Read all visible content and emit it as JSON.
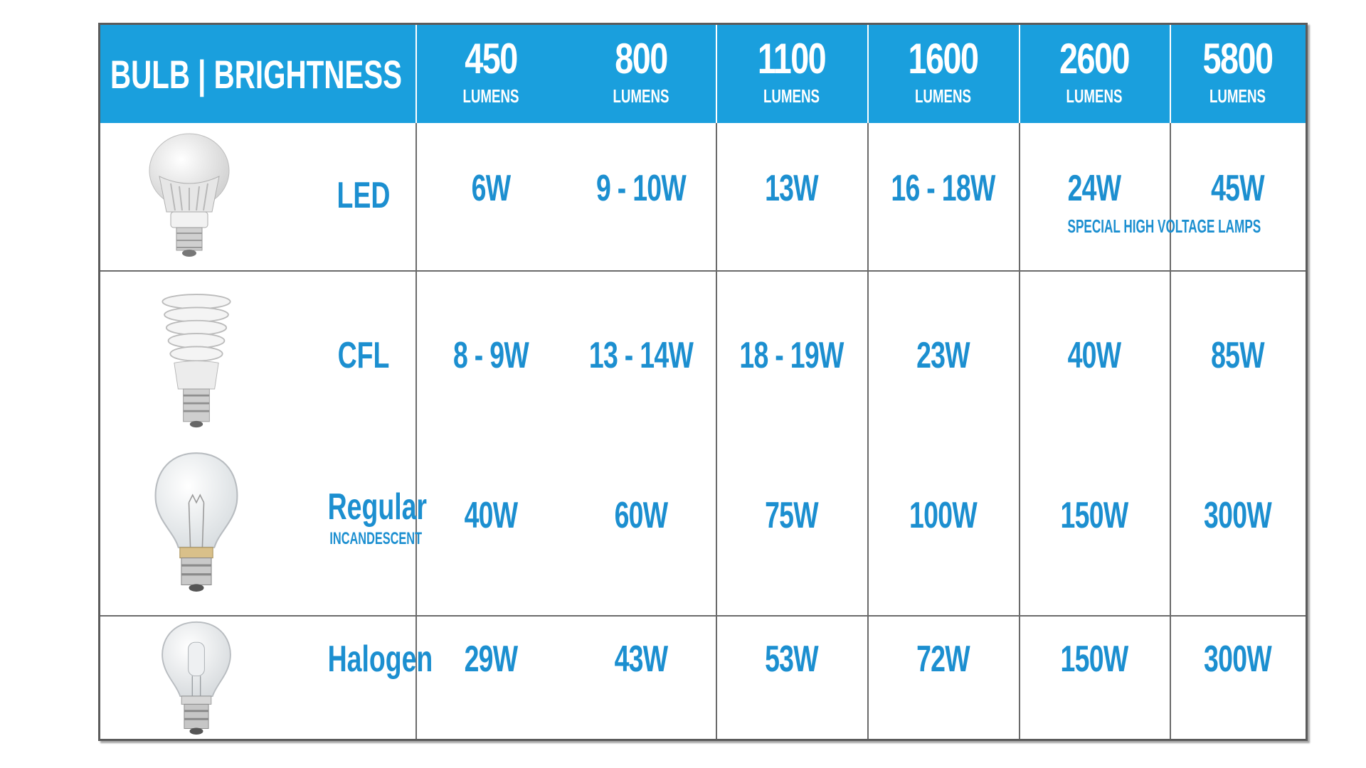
{
  "chart_data": {
    "type": "table",
    "corner_header": "BULB | BRIGHTNESS",
    "columns": [
      {
        "value": "450",
        "unit": "LUMENS"
      },
      {
        "value": "800",
        "unit": "LUMENS"
      },
      {
        "value": "1100",
        "unit": "LUMENS"
      },
      {
        "value": "1600",
        "unit": "LUMENS"
      },
      {
        "value": "2600",
        "unit": "LUMENS"
      },
      {
        "value": "5800",
        "unit": "LUMENS"
      }
    ],
    "rows": [
      {
        "label": "LED",
        "sublabel": "",
        "icon": "led-bulb-icon",
        "values": [
          "6W",
          "9 - 10W",
          "13W",
          "16 - 18W",
          "24W",
          "45W"
        ]
      },
      {
        "label": "CFL",
        "sublabel": "",
        "icon": "cfl-bulb-icon",
        "values": [
          "8 - 9W",
          "13 - 14W",
          "18 - 19W",
          "23W",
          "40W",
          "85W"
        ]
      },
      {
        "label": "Regular",
        "sublabel": "INCANDESCENT",
        "icon": "incandescent-bulb-icon",
        "values": [
          "40W",
          "60W",
          "75W",
          "100W",
          "150W",
          "300W"
        ]
      },
      {
        "label": "Halogen",
        "sublabel": "",
        "icon": "halogen-bulb-icon",
        "values": [
          "29W",
          "43W",
          "53W",
          "72W",
          "150W",
          "300W"
        ]
      }
    ],
    "note": "SPECIAL HIGH VOLTAGE LAMPS",
    "colors": {
      "header_bg": "#1a9fdd",
      "text": "#1c8fd0",
      "grid": "#6a6a6a"
    }
  }
}
